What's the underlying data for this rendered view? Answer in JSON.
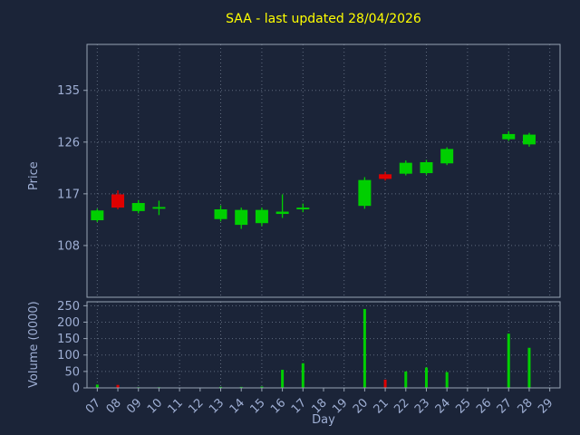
{
  "colors": {
    "background": "#1b2438",
    "grid": "#8d99ad",
    "spine": "#97a3b4",
    "tick_label": "#9fafd4",
    "title": "#ffff00",
    "up": "#00cf00",
    "down": "#e00000"
  },
  "chart_data": {
    "type": "candlestick+volume",
    "title": "SAA - last updated 28/04/2026",
    "xlabel": "Day",
    "price_ylabel": "Price",
    "volume_ylabel": "Volume (0000)",
    "legend": "none",
    "grid": "dotted",
    "x_ticks": [
      "07",
      "08",
      "09",
      "10",
      "11",
      "12",
      "13",
      "14",
      "15",
      "16",
      "17",
      "18",
      "19",
      "20",
      "21",
      "22",
      "23",
      "24",
      "25",
      "26",
      "27",
      "28",
      "29"
    ],
    "first_day": 7,
    "xlim": [
      6.5,
      29.5
    ],
    "price_ticks": [
      108,
      117,
      126,
      135
    ],
    "price_ylim": [
      99,
      143
    ],
    "volume_ticks": [
      0,
      50,
      100,
      150,
      200,
      250
    ],
    "volume_ylim": [
      0,
      262
    ],
    "up_color": "#00cf00",
    "down_color": "#e00000",
    "candles": [
      {
        "day": 7,
        "open": 112.4,
        "high": 114.4,
        "low": 112.1,
        "close": 114.1,
        "volume": 10
      },
      {
        "day": 8,
        "open": 116.9,
        "high": 117.6,
        "low": 114.3,
        "close": 114.6,
        "volume": 9
      },
      {
        "day": 9,
        "open": 114.0,
        "high": 115.9,
        "low": 113.6,
        "close": 115.4,
        "volume": 2
      },
      {
        "day": 10,
        "open": 114.4,
        "high": 115.8,
        "low": 113.3,
        "close": 114.7,
        "volume": 2
      },
      {
        "day": 13,
        "open": 112.6,
        "high": 115.0,
        "low": 112.2,
        "close": 114.3,
        "volume": 3
      },
      {
        "day": 14,
        "open": 111.6,
        "high": 114.6,
        "low": 110.9,
        "close": 114.2,
        "volume": 3
      },
      {
        "day": 15,
        "open": 111.9,
        "high": 114.6,
        "low": 111.4,
        "close": 114.2,
        "volume": 4
      },
      {
        "day": 16,
        "open": 113.5,
        "high": 116.9,
        "low": 112.8,
        "close": 113.9,
        "volume": 55
      },
      {
        "day": 17,
        "open": 114.3,
        "high": 115.3,
        "low": 113.8,
        "close": 114.6,
        "volume": 75
      },
      {
        "day": 20,
        "open": 114.9,
        "high": 119.9,
        "low": 114.4,
        "close": 119.4,
        "volume": 240
      },
      {
        "day": 21,
        "open": 120.4,
        "high": 120.8,
        "low": 119.3,
        "close": 119.6,
        "volume": 25
      },
      {
        "day": 22,
        "open": 120.5,
        "high": 122.8,
        "low": 120.2,
        "close": 122.4,
        "volume": 50
      },
      {
        "day": 23,
        "open": 120.6,
        "high": 122.9,
        "low": 120.3,
        "close": 122.5,
        "volume": 62
      },
      {
        "day": 24,
        "open": 122.3,
        "high": 125.1,
        "low": 122.0,
        "close": 124.8,
        "volume": 48
      },
      {
        "day": 27,
        "open": 126.5,
        "high": 127.9,
        "low": 126.2,
        "close": 127.4,
        "volume": 165
      },
      {
        "day": 28,
        "open": 125.6,
        "high": 127.6,
        "low": 125.2,
        "close": 127.3,
        "volume": 122
      }
    ]
  }
}
